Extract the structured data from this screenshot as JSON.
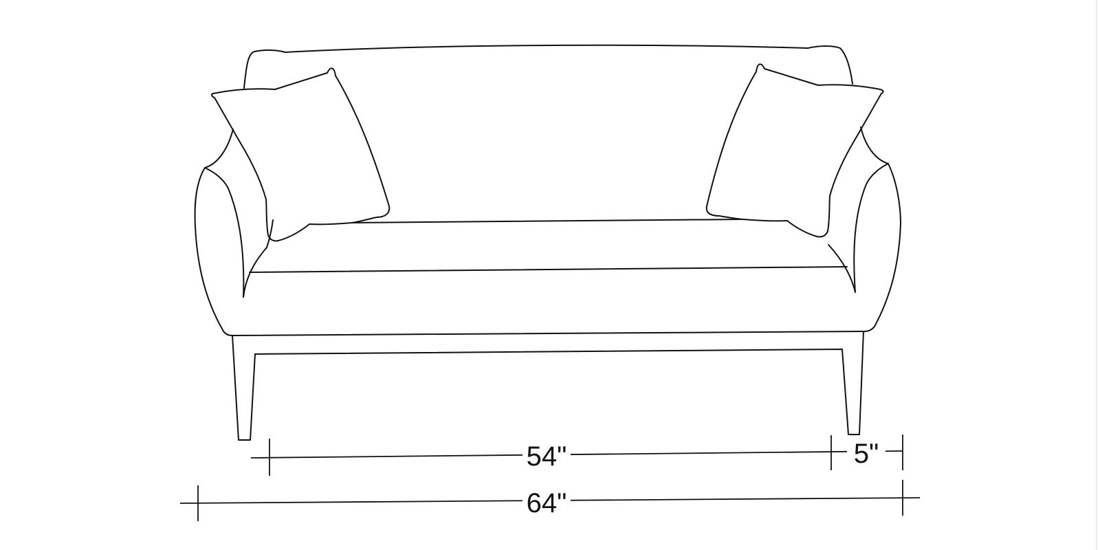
{
  "dimensions": {
    "inner_width": "54\"",
    "arm_width": "5\"",
    "overall_width": "64\""
  }
}
